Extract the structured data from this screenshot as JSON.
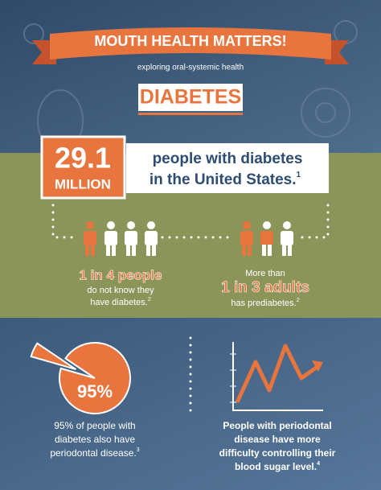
{
  "header": {
    "title": "MOUTH HEALTH MATTERS!",
    "subtitle": "exploring oral-systemic health",
    "topic": "DIABETES"
  },
  "stat": {
    "number": "29.1",
    "unit": "MILLION",
    "text_line1": "people with diabetes",
    "text_line2": "in the United States.",
    "note": "1"
  },
  "left_fact": {
    "highlight": "1 in 4 people",
    "line1": "do not know they",
    "line2": "have diabetes.",
    "note": "2"
  },
  "right_fact": {
    "intro": "More than",
    "highlight": "1 in 3 adults",
    "line1": "has prediabetes.",
    "note": "2"
  },
  "pie": {
    "value": 95,
    "label": "95%"
  },
  "bottom_left": {
    "line1": "95% of people with",
    "line2": "diabetes also have",
    "line3": "periodontal disease.",
    "note": "3"
  },
  "bottom_right": {
    "line1": "People with periodontal",
    "line2": "disease have more",
    "line3": "difficulty controlling their",
    "line4": "blood sugar level.",
    "note": "4"
  }
}
